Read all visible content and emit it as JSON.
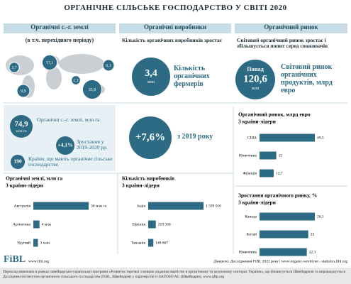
{
  "title": "ОРГАНІЧНЕ СІЛЬСЬКЕ ГОСПОДАРСТВО У СВІТІ 2020",
  "columns": [
    "Органічні с.-г. землі",
    "Органічні виробники",
    "Органічний ринок"
  ],
  "land": {
    "note": "(в т.ч. перехідного періоду)",
    "bubble_color": "#2c6b83",
    "regions": [
      {
        "value": 3.7,
        "label": "3,7"
      },
      {
        "value": 17.1,
        "label": "17,1"
      },
      {
        "value": 6.1,
        "label": "6,1"
      },
      {
        "value": 2.1,
        "label": "2,1"
      },
      {
        "value": 9.9,
        "label": "9,9"
      },
      {
        "value": 35.9,
        "label": "35,9"
      }
    ],
    "stats": [
      {
        "value": "74,9",
        "unit": "млн га",
        "text": "Органічні с.-г. землі, млн га"
      },
      {
        "value": "+4,1%",
        "text": "Зростання у 2019-2020 рр."
      },
      {
        "value": "190",
        "text": "Країни, що мають органічне сільське господарство"
      }
    ]
  },
  "producers": {
    "heading": "Кількість органічних виробників зростає",
    "count": {
      "value": "3,4",
      "unit": "млн",
      "text": "Кількість органічних фермерів"
    },
    "growth": {
      "value": "+7,6%",
      "text": "з 2019 року"
    }
  },
  "market": {
    "heading": "Світовий органічний ринок зростає і збільшується попит серед споживачів",
    "size": {
      "prefix": "Понад",
      "value": "120,6",
      "unit": "млн",
      "text": "Світовий ринок органічних продуктів, млрд евро"
    }
  },
  "chart_data": [
    {
      "type": "bar",
      "title": "Органічний ринок, млрд евро",
      "subtitle": "3 країни-лідери",
      "color": "#2c6b83",
      "categories": [
        "США",
        "Німеччина",
        "Франція"
      ],
      "values": [
        49.5,
        15,
        12.7
      ],
      "value_labels": [
        "49,5",
        "15",
        "12,7"
      ]
    },
    {
      "type": "bar",
      "title": "Органічні землі, млн га",
      "subtitle": "3 країни-лідери",
      "color": "#2c6b83",
      "categories": [
        "Австралія",
        "Аргентина",
        "Уругвай"
      ],
      "values": [
        36,
        4,
        3
      ],
      "value_labels": [
        "36 млн га",
        "4 млн",
        "3 млн"
      ]
    },
    {
      "type": "bar",
      "title": "Кількість виробників",
      "subtitle": "3 країни-лідери",
      "color": "#2c6b83",
      "categories": [
        "Індія",
        "Ефіопія",
        "Танзанія"
      ],
      "values": [
        1599010,
        219566,
        148607
      ],
      "value_labels": [
        "1 599 010",
        "219 566",
        "148 607"
      ]
    },
    {
      "type": "bar",
      "title": "Зростання органічного ринку, %",
      "subtitle": "3 країни-лідери",
      "color": "#2c6b83",
      "categories": [
        "Канада",
        "Китай",
        "Німеччина"
      ],
      "values": [
        26.1,
        23,
        22.3
      ],
      "value_labels": [
        "26,1",
        "23",
        "22,3"
      ]
    }
  ],
  "footer": {
    "logo": "FiBL",
    "site": "www.fibl.org",
    "source": "Джерело: Дослідження FiBL 2022 року | www.organic-world.net - statistics.fibl.org",
    "note": "Переклад виконано в рамках швейцарсько-української програми «Розвиток торгівлі з вищою доданою вартістю в органічному та молочному секторах України», що фінансується Швейцарією та впроваджується Дослідним інститутом органічного сільського господарства (FiBL, Швейцарія) у партнерстві із SAFOSO AG (Швейцарія), www.qftp.org"
  }
}
